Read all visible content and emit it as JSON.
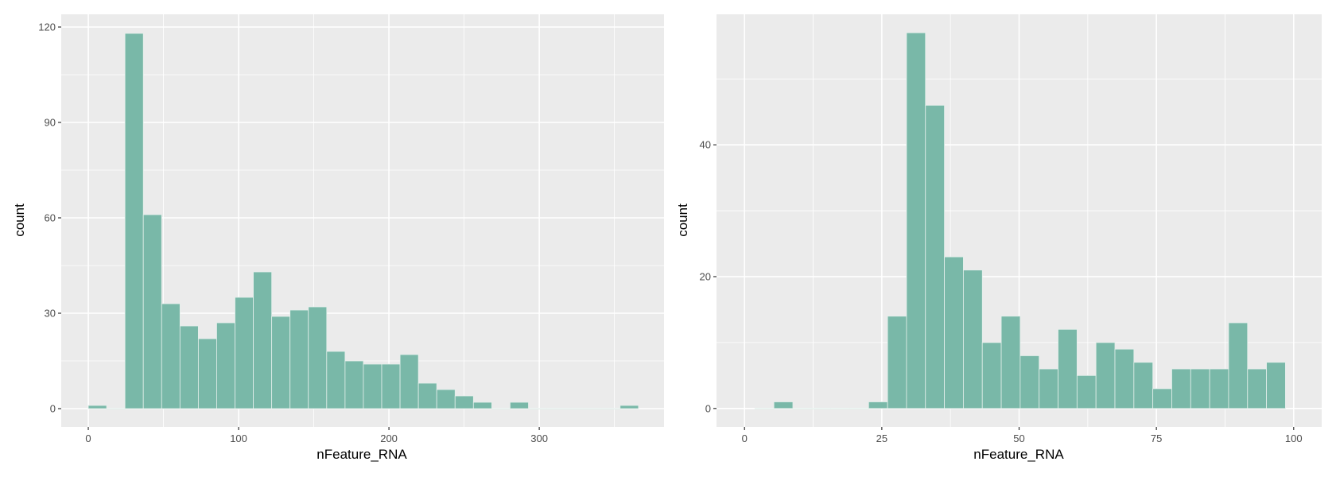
{
  "colors": {
    "panel_background": "#ebebeb",
    "grid": "#ffffff",
    "bar_fill": "#79b8a8",
    "bar_outline": "#e4efeb"
  },
  "chart_data": [
    {
      "type": "bar",
      "subtype": "histogram",
      "title": "",
      "xlabel": "nFeature_RNA",
      "ylabel": "count",
      "xlim": [
        -18,
        383
      ],
      "ylim": [
        -5.75,
        124
      ],
      "x_ticks": [
        0,
        100,
        200,
        300
      ],
      "x_tick_labels": [
        "0",
        "100",
        "200",
        "300"
      ],
      "y_ticks": [
        0,
        30,
        60,
        90,
        120
      ],
      "y_tick_labels": [
        "0",
        "30",
        "60",
        "90",
        "120"
      ],
      "grid": true,
      "bin_width": 12.2,
      "bin_start": 0,
      "counts": [
        1,
        0,
        118,
        61,
        33,
        26,
        22,
        27,
        35,
        43,
        29,
        31,
        32,
        18,
        15,
        14,
        14,
        17,
        8,
        6,
        4,
        2,
        0,
        2,
        0,
        0,
        0,
        0,
        0,
        1
      ]
    },
    {
      "type": "bar",
      "subtype": "histogram",
      "title": "",
      "xlabel": "nFeature_RNA",
      "ylabel": "count",
      "xlim": [
        -5.1,
        105.1
      ],
      "ylim": [
        -2.8,
        59.8
      ],
      "x_ticks": [
        0,
        25,
        50,
        75,
        100
      ],
      "x_tick_labels": [
        "0",
        "25",
        "50",
        "75",
        "100"
      ],
      "y_ticks": [
        0,
        20,
        40
      ],
      "y_tick_labels": [
        "0",
        "20",
        "40"
      ],
      "grid": true,
      "bin_width": 3.45,
      "bin_start": 1.9,
      "counts": [
        0,
        1,
        0,
        0,
        0,
        0,
        1,
        14,
        57,
        46,
        23,
        21,
        10,
        14,
        8,
        6,
        12,
        5,
        10,
        9,
        7,
        3,
        6,
        6,
        6,
        13,
        6,
        7
      ]
    }
  ]
}
